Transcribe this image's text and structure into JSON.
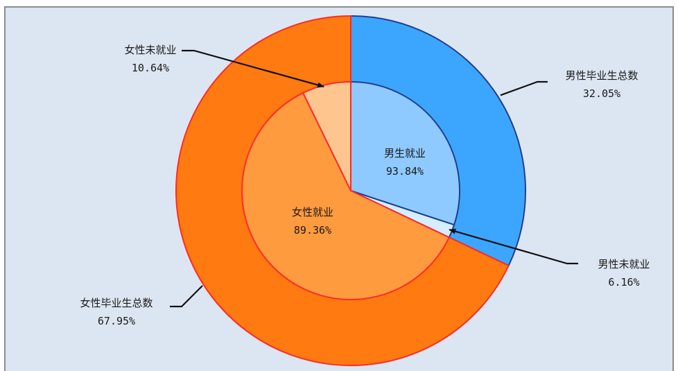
{
  "chart_data": {
    "type": "pie",
    "subtype": "nested-donut",
    "outer_ring": [
      {
        "label": "男性毕业生总数",
        "value": 32.05,
        "display": "32.05%",
        "color": "#3ca6ff",
        "stroke": "#1f3f8a"
      },
      {
        "label": "女性毕业生总数",
        "value": 67.95,
        "display": "67.95%",
        "color": "#ff7a10",
        "stroke": "#ff2a2a"
      }
    ],
    "inner_pie": [
      {
        "label": "男生就业",
        "value": 93.84,
        "display": "93.84%",
        "color": "#8ecaff",
        "stroke": "#1f3f8a",
        "group": "male"
      },
      {
        "label": "男性未就业",
        "value": 6.16,
        "display": "6.16%",
        "color": "#d4eeff",
        "stroke": "#1f3f8a",
        "group": "male"
      },
      {
        "label": "女性就业",
        "value": 89.36,
        "display": "89.36%",
        "color": "#ff9b3f",
        "stroke": "#ff2a2a",
        "group": "female"
      },
      {
        "label": "女性未就业",
        "value": 10.64,
        "display": "10.64%",
        "color": "#ffc58f",
        "stroke": "#ff2a2a",
        "group": "female"
      }
    ],
    "legend": "none",
    "background_color": "#dce6f2"
  }
}
